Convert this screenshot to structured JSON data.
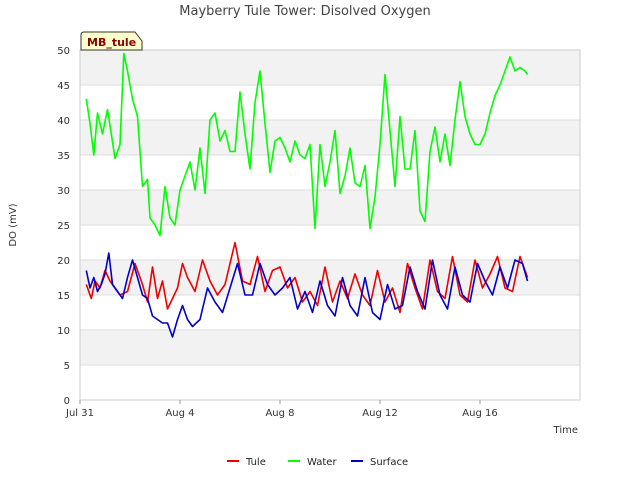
{
  "chart_data": {
    "type": "line",
    "title": "Mayberry Tule Tower: Disolved Oxygen",
    "xlabel": "Time",
    "ylabel": "DO (mV)",
    "badge": "MB_tule",
    "ylim": [
      0,
      50
    ],
    "yticks": [
      0,
      5,
      10,
      15,
      20,
      25,
      30,
      35,
      40,
      45,
      50
    ],
    "xlim": [
      0,
      20
    ],
    "xticks": [
      {
        "x": 0,
        "label": "Jul 31"
      },
      {
        "x": 4,
        "label": "Aug 4"
      },
      {
        "x": 8,
        "label": "Aug 8"
      },
      {
        "x": 12,
        "label": "Aug 12"
      },
      {
        "x": 16,
        "label": "Aug 16"
      }
    ],
    "grid": true,
    "legend_position": "bottom",
    "series": [
      {
        "name": "Tule",
        "color": "#ee0000",
        "x": [
          0.25,
          0.45,
          0.6,
          0.8,
          1.0,
          1.2,
          1.4,
          1.6,
          1.9,
          2.2,
          2.5,
          2.7,
          2.9,
          3.1,
          3.3,
          3.5,
          3.7,
          3.9,
          4.1,
          4.3,
          4.6,
          4.9,
          5.2,
          5.5,
          5.8,
          6.0,
          6.2,
          6.5,
          6.8,
          7.1,
          7.4,
          7.7,
          8.0,
          8.3,
          8.6,
          8.9,
          9.2,
          9.5,
          9.8,
          10.1,
          10.4,
          10.7,
          11.0,
          11.3,
          11.6,
          11.9,
          12.2,
          12.5,
          12.8,
          13.1,
          13.4,
          13.7,
          14.0,
          14.3,
          14.6,
          14.9,
          15.2,
          15.5,
          15.8,
          16.1,
          16.4,
          16.7,
          17.0,
          17.3,
          17.6,
          17.9
        ],
        "y": [
          16.5,
          14.5,
          17.0,
          16.0,
          18.5,
          17.0,
          16.0,
          15.0,
          15.5,
          19.5,
          16.5,
          14.0,
          19.0,
          14.5,
          17.0,
          13.0,
          14.5,
          16.0,
          19.5,
          17.5,
          15.5,
          20.0,
          17.0,
          15.0,
          16.5,
          19.5,
          22.5,
          17.0,
          16.5,
          20.5,
          15.5,
          18.5,
          19.0,
          16.0,
          17.5,
          14.0,
          15.5,
          13.5,
          19.0,
          14.0,
          17.0,
          14.5,
          18.0,
          15.0,
          13.5,
          18.5,
          14.0,
          16.0,
          12.5,
          19.5,
          16.0,
          13.0,
          20.0,
          15.5,
          14.5,
          20.5,
          15.0,
          14.0,
          20.0,
          16.0,
          18.0,
          20.5,
          16.0,
          15.5,
          20.5,
          17.5
        ]
      },
      {
        "name": "Water",
        "color": "#00ff00",
        "x": [
          0.25,
          0.4,
          0.55,
          0.7,
          0.9,
          1.1,
          1.25,
          1.4,
          1.6,
          1.75,
          1.9,
          2.1,
          2.3,
          2.5,
          2.7,
          2.8,
          3.0,
          3.2,
          3.4,
          3.6,
          3.8,
          4.0,
          4.2,
          4.4,
          4.6,
          4.8,
          5.0,
          5.2,
          5.4,
          5.6,
          5.8,
          6.0,
          6.2,
          6.4,
          6.6,
          6.8,
          7.0,
          7.2,
          7.4,
          7.6,
          7.8,
          8.0,
          8.2,
          8.4,
          8.6,
          8.8,
          9.0,
          9.2,
          9.4,
          9.6,
          9.8,
          10.0,
          10.2,
          10.4,
          10.6,
          10.8,
          11.0,
          11.2,
          11.4,
          11.6,
          11.8,
          12.0,
          12.2,
          12.4,
          12.6,
          12.8,
          13.0,
          13.2,
          13.4,
          13.6,
          13.8,
          14.0,
          14.2,
          14.4,
          14.6,
          14.8,
          15.0,
          15.2,
          15.4,
          15.6,
          15.8,
          16.0,
          16.2,
          16.4,
          16.6,
          16.8,
          17.0,
          17.2,
          17.4,
          17.6,
          17.8,
          17.9
        ],
        "y": [
          43.0,
          39.5,
          35.0,
          41.0,
          38.0,
          41.5,
          38.0,
          34.5,
          36.5,
          49.5,
          47.0,
          43.0,
          40.5,
          30.5,
          31.5,
          26.0,
          25.0,
          23.5,
          30.5,
          26.0,
          25.0,
          30.0,
          32.0,
          34.0,
          30.0,
          36.0,
          29.5,
          40.0,
          41.0,
          37.0,
          38.5,
          35.5,
          35.5,
          44.0,
          38.0,
          33.0,
          42.5,
          47.0,
          39.5,
          32.5,
          37.0,
          37.5,
          36.0,
          34.0,
          37.0,
          35.0,
          34.5,
          36.5,
          24.5,
          36.5,
          30.5,
          34.0,
          38.5,
          29.5,
          32.0,
          36.0,
          31.0,
          30.5,
          33.5,
          24.5,
          29.0,
          36.5,
          46.5,
          38.5,
          30.5,
          40.5,
          33.0,
          33.0,
          38.5,
          27.0,
          25.5,
          35.5,
          39.0,
          34.0,
          38.0,
          33.5,
          40.0,
          45.5,
          40.5,
          38.0,
          36.5,
          36.5,
          38.0,
          41.0,
          43.5,
          45.0,
          47.0,
          49.0,
          47.0,
          47.5,
          47.0,
          46.5
        ]
      },
      {
        "name": "Surface",
        "color": "#0000cc",
        "x": [
          0.25,
          0.4,
          0.55,
          0.7,
          0.85,
          1.0,
          1.15,
          1.3,
          1.5,
          1.7,
          1.9,
          2.1,
          2.3,
          2.5,
          2.7,
          2.9,
          3.1,
          3.3,
          3.5,
          3.7,
          3.9,
          4.1,
          4.3,
          4.5,
          4.8,
          5.1,
          5.4,
          5.7,
          6.0,
          6.3,
          6.6,
          6.9,
          7.2,
          7.5,
          7.8,
          8.1,
          8.4,
          8.7,
          9.0,
          9.3,
          9.6,
          9.9,
          10.2,
          10.5,
          10.8,
          11.1,
          11.4,
          11.7,
          12.0,
          12.3,
          12.6,
          12.9,
          13.2,
          13.5,
          13.8,
          14.1,
          14.4,
          14.7,
          15.0,
          15.3,
          15.6,
          15.9,
          16.2,
          16.5,
          16.8,
          17.1,
          17.4,
          17.7,
          17.9
        ],
        "y": [
          18.5,
          16.0,
          17.5,
          15.5,
          16.5,
          18.0,
          21.0,
          16.5,
          15.5,
          14.5,
          17.5,
          20.0,
          17.5,
          15.0,
          14.5,
          12.0,
          11.5,
          11.0,
          11.0,
          9.0,
          11.5,
          13.5,
          11.5,
          10.5,
          11.5,
          16.0,
          14.0,
          12.5,
          16.0,
          19.5,
          15.0,
          15.0,
          19.5,
          16.5,
          15.0,
          16.0,
          17.5,
          13.0,
          15.5,
          12.5,
          17.0,
          13.5,
          12.0,
          17.5,
          13.5,
          12.0,
          17.5,
          12.5,
          11.5,
          16.5,
          13.0,
          13.5,
          19.0,
          15.5,
          13.0,
          20.0,
          15.0,
          13.0,
          19.0,
          15.0,
          14.0,
          19.5,
          17.0,
          15.0,
          19.0,
          16.0,
          20.0,
          19.5,
          17.0
        ]
      }
    ]
  }
}
